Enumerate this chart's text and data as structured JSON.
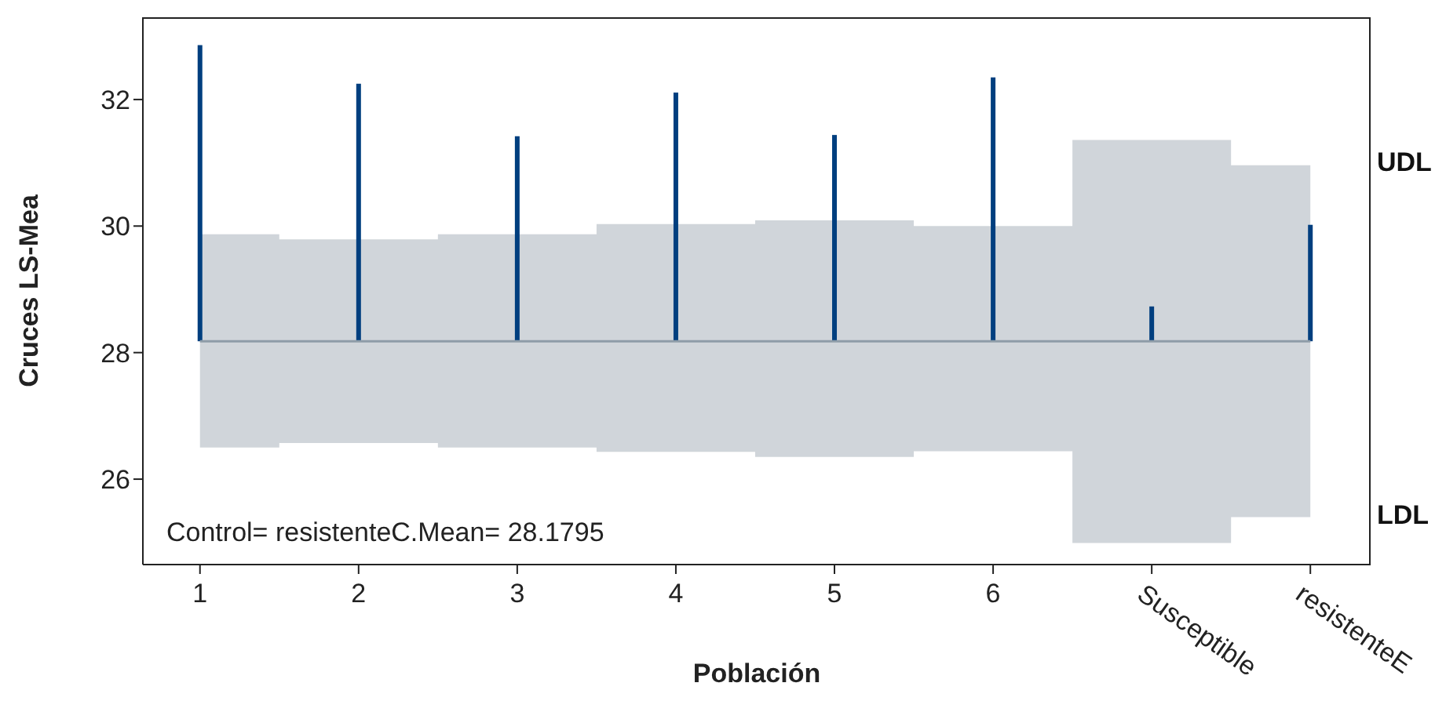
{
  "chart_data": {
    "type": "bar",
    "xlabel": "Población",
    "ylabel": "Cruces LS-Mea",
    "categories": [
      "1",
      "2",
      "3",
      "4",
      "5",
      "6",
      "Susceptible",
      "resistenteE"
    ],
    "base": [
      28.1795,
      28.1795,
      28.1795,
      28.1795,
      28.1795,
      28.1795,
      28.1795,
      28.1795
    ],
    "values": [
      4.68,
      4.07,
      3.24,
      3.93,
      3.26,
      4.17,
      0.55,
      1.84
    ],
    "color": "#003f7f",
    "series": [
      {
        "type": "line",
        "color": "#8e9ca8",
        "values": [
          28.1795,
          28.1795,
          28.1795,
          28.1795,
          28.1795,
          28.1795,
          28.1795,
          28.1795
        ],
        "lower": [
          26.5,
          26.57,
          26.5,
          26.43,
          26.35,
          26.44,
          24.99,
          25.4
        ],
        "upper": [
          29.87,
          29.79,
          29.87,
          30.03,
          30.09,
          30.0,
          31.36,
          30.96
        ]
      }
    ],
    "ylim": [
      24.65,
      33.3
    ],
    "yticks": [
      26,
      28,
      30,
      32
    ],
    "annotations": [
      "Control= resistenteC.Mean= 28.1795",
      "UDL",
      "LDL"
    ]
  }
}
